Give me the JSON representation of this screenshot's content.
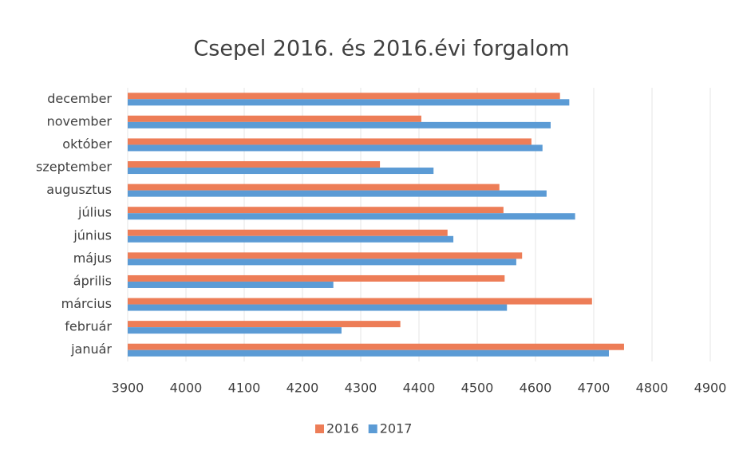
{
  "chart_data": {
    "type": "barh",
    "title": "Csepel 2016. és 2016.évi forgalom",
    "categories": [
      "január",
      "február",
      "március",
      "április",
      "május",
      "június",
      "július",
      "augusztus",
      "szeptember",
      "október",
      "november",
      "december"
    ],
    "series": [
      {
        "name": "2016",
        "color": "#ed7d57",
        "values": [
          4752,
          4368,
          4697,
          4547,
          4577,
          4449,
          4545,
          4538,
          4333,
          4593,
          4404,
          4642
        ]
      },
      {
        "name": "2017",
        "color": "#5b9bd5",
        "values": [
          4726,
          4267,
          4551,
          4253,
          4567,
          4459,
          4668,
          4619,
          4425,
          4612,
          4626,
          4658
        ]
      }
    ],
    "xlim": [
      3900,
      4900
    ],
    "xticks": [
      3900,
      4000,
      4100,
      4200,
      4300,
      4400,
      4500,
      4600,
      4700,
      4800,
      4900
    ],
    "grid": true,
    "legend": "bottom"
  }
}
